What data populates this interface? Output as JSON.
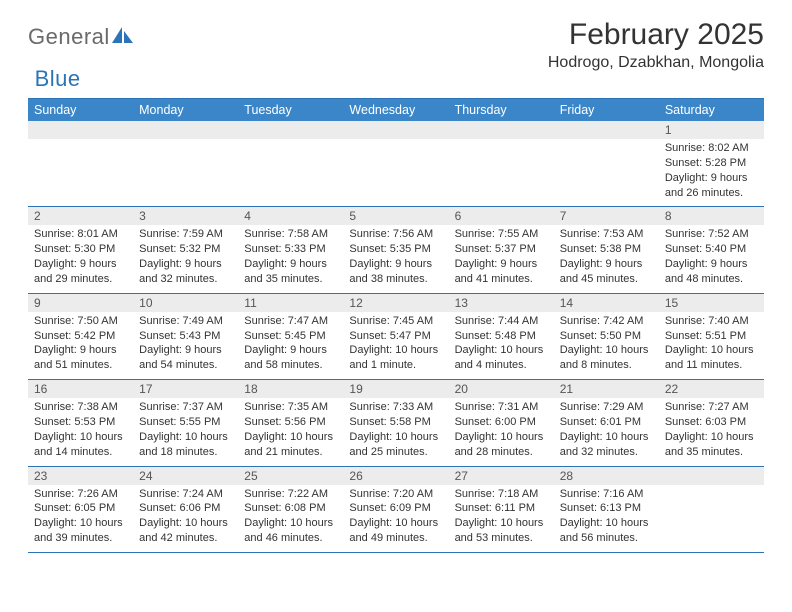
{
  "logo": {
    "text1": "General",
    "text2": "Blue"
  },
  "title": "February 2025",
  "location": "Hodrogo, Dzabkhan, Mongolia",
  "colors": {
    "header_bg": "#3b86c8",
    "header_text": "#ffffff",
    "rule": "#2b74b8",
    "daynum_bg": "#ececec",
    "body_text": "#333333",
    "logo_gray": "#6a6a6a",
    "logo_blue": "#2b74b8",
    "page_bg": "#ffffff"
  },
  "day_labels": [
    "Sunday",
    "Monday",
    "Tuesday",
    "Wednesday",
    "Thursday",
    "Friday",
    "Saturday"
  ],
  "weeks": [
    [
      {
        "n": "",
        "sunrise": "",
        "sunset": "",
        "daylight": ""
      },
      {
        "n": "",
        "sunrise": "",
        "sunset": "",
        "daylight": ""
      },
      {
        "n": "",
        "sunrise": "",
        "sunset": "",
        "daylight": ""
      },
      {
        "n": "",
        "sunrise": "",
        "sunset": "",
        "daylight": ""
      },
      {
        "n": "",
        "sunrise": "",
        "sunset": "",
        "daylight": ""
      },
      {
        "n": "",
        "sunrise": "",
        "sunset": "",
        "daylight": ""
      },
      {
        "n": "1",
        "sunrise": "Sunrise: 8:02 AM",
        "sunset": "Sunset: 5:28 PM",
        "daylight": "Daylight: 9 hours and 26 minutes."
      }
    ],
    [
      {
        "n": "2",
        "sunrise": "Sunrise: 8:01 AM",
        "sunset": "Sunset: 5:30 PM",
        "daylight": "Daylight: 9 hours and 29 minutes."
      },
      {
        "n": "3",
        "sunrise": "Sunrise: 7:59 AM",
        "sunset": "Sunset: 5:32 PM",
        "daylight": "Daylight: 9 hours and 32 minutes."
      },
      {
        "n": "4",
        "sunrise": "Sunrise: 7:58 AM",
        "sunset": "Sunset: 5:33 PM",
        "daylight": "Daylight: 9 hours and 35 minutes."
      },
      {
        "n": "5",
        "sunrise": "Sunrise: 7:56 AM",
        "sunset": "Sunset: 5:35 PM",
        "daylight": "Daylight: 9 hours and 38 minutes."
      },
      {
        "n": "6",
        "sunrise": "Sunrise: 7:55 AM",
        "sunset": "Sunset: 5:37 PM",
        "daylight": "Daylight: 9 hours and 41 minutes."
      },
      {
        "n": "7",
        "sunrise": "Sunrise: 7:53 AM",
        "sunset": "Sunset: 5:38 PM",
        "daylight": "Daylight: 9 hours and 45 minutes."
      },
      {
        "n": "8",
        "sunrise": "Sunrise: 7:52 AM",
        "sunset": "Sunset: 5:40 PM",
        "daylight": "Daylight: 9 hours and 48 minutes."
      }
    ],
    [
      {
        "n": "9",
        "sunrise": "Sunrise: 7:50 AM",
        "sunset": "Sunset: 5:42 PM",
        "daylight": "Daylight: 9 hours and 51 minutes."
      },
      {
        "n": "10",
        "sunrise": "Sunrise: 7:49 AM",
        "sunset": "Sunset: 5:43 PM",
        "daylight": "Daylight: 9 hours and 54 minutes."
      },
      {
        "n": "11",
        "sunrise": "Sunrise: 7:47 AM",
        "sunset": "Sunset: 5:45 PM",
        "daylight": "Daylight: 9 hours and 58 minutes."
      },
      {
        "n": "12",
        "sunrise": "Sunrise: 7:45 AM",
        "sunset": "Sunset: 5:47 PM",
        "daylight": "Daylight: 10 hours and 1 minute."
      },
      {
        "n": "13",
        "sunrise": "Sunrise: 7:44 AM",
        "sunset": "Sunset: 5:48 PM",
        "daylight": "Daylight: 10 hours and 4 minutes."
      },
      {
        "n": "14",
        "sunrise": "Sunrise: 7:42 AM",
        "sunset": "Sunset: 5:50 PM",
        "daylight": "Daylight: 10 hours and 8 minutes."
      },
      {
        "n": "15",
        "sunrise": "Sunrise: 7:40 AM",
        "sunset": "Sunset: 5:51 PM",
        "daylight": "Daylight: 10 hours and 11 minutes."
      }
    ],
    [
      {
        "n": "16",
        "sunrise": "Sunrise: 7:38 AM",
        "sunset": "Sunset: 5:53 PM",
        "daylight": "Daylight: 10 hours and 14 minutes."
      },
      {
        "n": "17",
        "sunrise": "Sunrise: 7:37 AM",
        "sunset": "Sunset: 5:55 PM",
        "daylight": "Daylight: 10 hours and 18 minutes."
      },
      {
        "n": "18",
        "sunrise": "Sunrise: 7:35 AM",
        "sunset": "Sunset: 5:56 PM",
        "daylight": "Daylight: 10 hours and 21 minutes."
      },
      {
        "n": "19",
        "sunrise": "Sunrise: 7:33 AM",
        "sunset": "Sunset: 5:58 PM",
        "daylight": "Daylight: 10 hours and 25 minutes."
      },
      {
        "n": "20",
        "sunrise": "Sunrise: 7:31 AM",
        "sunset": "Sunset: 6:00 PM",
        "daylight": "Daylight: 10 hours and 28 minutes."
      },
      {
        "n": "21",
        "sunrise": "Sunrise: 7:29 AM",
        "sunset": "Sunset: 6:01 PM",
        "daylight": "Daylight: 10 hours and 32 minutes."
      },
      {
        "n": "22",
        "sunrise": "Sunrise: 7:27 AM",
        "sunset": "Sunset: 6:03 PM",
        "daylight": "Daylight: 10 hours and 35 minutes."
      }
    ],
    [
      {
        "n": "23",
        "sunrise": "Sunrise: 7:26 AM",
        "sunset": "Sunset: 6:05 PM",
        "daylight": "Daylight: 10 hours and 39 minutes."
      },
      {
        "n": "24",
        "sunrise": "Sunrise: 7:24 AM",
        "sunset": "Sunset: 6:06 PM",
        "daylight": "Daylight: 10 hours and 42 minutes."
      },
      {
        "n": "25",
        "sunrise": "Sunrise: 7:22 AM",
        "sunset": "Sunset: 6:08 PM",
        "daylight": "Daylight: 10 hours and 46 minutes."
      },
      {
        "n": "26",
        "sunrise": "Sunrise: 7:20 AM",
        "sunset": "Sunset: 6:09 PM",
        "daylight": "Daylight: 10 hours and 49 minutes."
      },
      {
        "n": "27",
        "sunrise": "Sunrise: 7:18 AM",
        "sunset": "Sunset: 6:11 PM",
        "daylight": "Daylight: 10 hours and 53 minutes."
      },
      {
        "n": "28",
        "sunrise": "Sunrise: 7:16 AM",
        "sunset": "Sunset: 6:13 PM",
        "daylight": "Daylight: 10 hours and 56 minutes."
      },
      {
        "n": "",
        "sunrise": "",
        "sunset": "",
        "daylight": ""
      }
    ]
  ]
}
